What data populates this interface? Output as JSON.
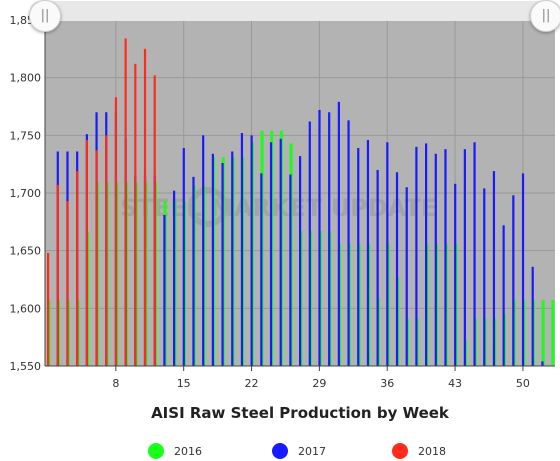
{
  "chart_data": {
    "type": "bar",
    "title": "AISI Raw Steel Production by Week",
    "xlabel": "",
    "ylabel": "",
    "ylim": [
      1550,
      1850
    ],
    "yticks": [
      1550,
      1600,
      1650,
      1700,
      1750,
      1800,
      1850
    ],
    "ytick_labels": [
      "1,550",
      "1,600",
      "1,650",
      "1,700",
      "1,750",
      "1,800",
      "1,850"
    ],
    "xlim": [
      1,
      53
    ],
    "xticks": [
      8,
      15,
      22,
      29,
      36,
      43,
      50
    ],
    "grid": true,
    "legend_position": "bottom",
    "watermark": "STEEL MARKET UPDATE",
    "series": [
      {
        "name": "2016",
        "color": "#19ff19",
        "x": [
          1,
          2,
          3,
          4,
          5,
          6,
          7,
          8,
          9,
          10,
          11,
          12,
          13,
          14,
          15,
          16,
          17,
          18,
          19,
          20,
          21,
          22,
          23,
          24,
          25,
          26,
          27,
          28,
          29,
          30,
          31,
          32,
          33,
          34,
          35,
          36,
          37,
          38,
          39,
          40,
          41,
          42,
          43,
          44,
          45,
          46,
          47,
          48,
          49,
          50,
          51,
          52,
          53
        ],
        "values": [
          1607,
          1607,
          1607,
          1607,
          1666,
          1709,
          1709,
          1709,
          1709,
          1709,
          1709,
          1709,
          1693,
          1693,
          1693,
          1706,
          1706,
          1731,
          1731,
          1731,
          1731,
          1744,
          1754,
          1754,
          1754,
          1743,
          1667,
          1667,
          1667,
          1667,
          1656,
          1656,
          1656,
          1656,
          1609,
          1656,
          1627,
          1591,
          1591,
          1656,
          1656,
          1656,
          1656,
          1572,
          1591,
          1591,
          1591,
          1595,
          1607,
          1607,
          1607,
          1607,
          1607
        ]
      },
      {
        "name": "2017",
        "color": "#1a1aff",
        "x": [
          2,
          3,
          4,
          5,
          6,
          7,
          8,
          9,
          10,
          11,
          12,
          13,
          14,
          15,
          16,
          17,
          18,
          19,
          20,
          21,
          22,
          23,
          24,
          25,
          26,
          27,
          28,
          29,
          30,
          31,
          32,
          33,
          34,
          35,
          36,
          37,
          38,
          39,
          40,
          41,
          42,
          43,
          44,
          45,
          46,
          47,
          48,
          49,
          50,
          51,
          52
        ],
        "values": [
          1736,
          1736,
          1736,
          1751,
          1770,
          1770,
          1770,
          1747,
          1715,
          1715,
          1715,
          1681,
          1702,
          1739,
          1714,
          1750,
          1734,
          1726,
          1736,
          1752,
          1750,
          1717,
          1744,
          1747,
          1716,
          1732,
          1762,
          1772,
          1770,
          1779,
          1763,
          1739,
          1746,
          1720,
          1744,
          1718,
          1705,
          1740,
          1743,
          1734,
          1738,
          1708,
          1738,
          1744,
          1704,
          1719,
          1672,
          1698,
          1717,
          1636,
          1554
        ]
      },
      {
        "name": "2018",
        "color": "#ff2a1a",
        "x": [
          1,
          2,
          3,
          4,
          5,
          6,
          7,
          8,
          9,
          10,
          11,
          12
        ],
        "values": [
          1648,
          1707,
          1693,
          1719,
          1746,
          1737,
          1750,
          1783,
          1834,
          1812,
          1825,
          1802
        ]
      }
    ]
  }
}
